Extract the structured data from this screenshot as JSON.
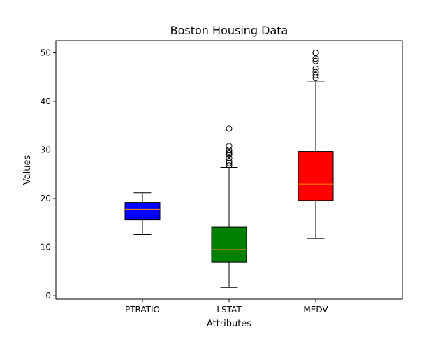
{
  "chart_data": {
    "type": "box",
    "title": "Boston Housing Data",
    "xlabel": "Attributes",
    "ylabel": "Values",
    "ylim": [
      -0.7,
      52.5
    ],
    "yticks": [
      0,
      10,
      20,
      30,
      40,
      50
    ],
    "grid": false,
    "median_color": "#ff8c00",
    "series": [
      {
        "name": "PTRATIO",
        "color": "#0000ff",
        "whisker_low": 12.6,
        "q1": 15.6,
        "median": 17.8,
        "q3": 19.2,
        "whisker_high": 21.2,
        "outliers": []
      },
      {
        "name": "LSTAT",
        "color": "#008000",
        "whisker_low": 1.7,
        "q1": 6.9,
        "median": 9.5,
        "q3": 14.1,
        "whisker_high": 26.4,
        "outliers": [
          26.8,
          27.3,
          27.7,
          28.3,
          29.0,
          29.3,
          29.6,
          30.0,
          30.8,
          34.4
        ]
      },
      {
        "name": "MEDV",
        "color": "#ff0000",
        "whisker_low": 11.8,
        "q1": 19.6,
        "median": 23.0,
        "q3": 29.7,
        "whisker_high": 44.0,
        "outliers": [
          44.8,
          45.4,
          46.0,
          46.7,
          48.3,
          48.8,
          50.0,
          50.0,
          50.0,
          50.0
        ]
      }
    ]
  }
}
